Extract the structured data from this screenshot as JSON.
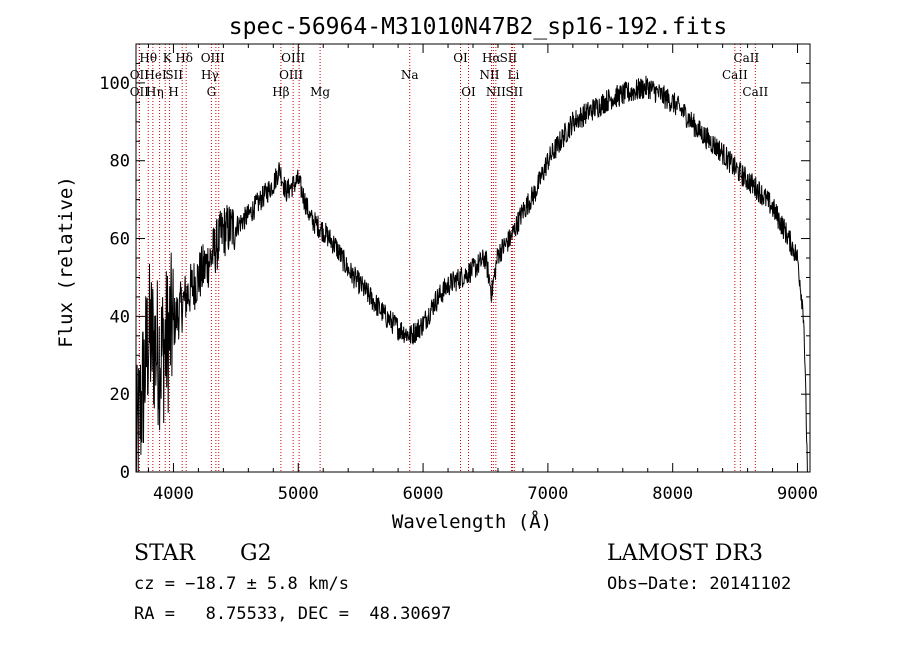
{
  "chart_data": {
    "type": "line",
    "title": "spec-56964-M31010N47B2_sp16-192.fits",
    "xlabel": "Wavelength (Å)",
    "ylabel": "Flux (relative)",
    "xlim": [
      3700,
      9100
    ],
    "ylim": [
      0,
      110
    ],
    "x_ticks": [
      4000,
      5000,
      6000,
      7000,
      8000,
      9000
    ],
    "y_ticks": [
      0,
      20,
      40,
      60,
      80,
      100
    ],
    "grid": false,
    "line_color": "#000000",
    "marker_color": "#cc0000",
    "series": [
      {
        "name": "flux",
        "x": [
          3700,
          3800,
          3900,
          4000,
          4100,
          4200,
          4300,
          4400,
          4500,
          4600,
          4700,
          4800,
          4850,
          4900,
          5000,
          5100,
          5200,
          5300,
          5400,
          5500,
          5600,
          5700,
          5800,
          5900,
          6000,
          6100,
          6200,
          6300,
          6400,
          6500,
          6550,
          6600,
          6700,
          6800,
          6900,
          7000,
          7100,
          7200,
          7300,
          7400,
          7500,
          7600,
          7700,
          7800,
          7900,
          8000,
          8100,
          8200,
          8300,
          8400,
          8500,
          8600,
          8700,
          8800,
          8900,
          9000,
          9050,
          9080
        ],
        "y": [
          5,
          35,
          30,
          38,
          45,
          50,
          55,
          62,
          63,
          66,
          70,
          74,
          78,
          72,
          75,
          65,
          62,
          58,
          52,
          48,
          44,
          40,
          37,
          35,
          38,
          44,
          48,
          50,
          52,
          55,
          46,
          56,
          60,
          67,
          72,
          80,
          85,
          90,
          92,
          94,
          96,
          97,
          98,
          99,
          97,
          95,
          92,
          88,
          85,
          82,
          78,
          75,
          72,
          68,
          62,
          55,
          40,
          0
        ]
      }
    ],
    "lines": [
      {
        "label": "Hθ",
        "x": 3798,
        "row": 1,
        "dx": 0
      },
      {
        "label": "K",
        "x": 3934,
        "row": 1,
        "dx": 2
      },
      {
        "label": "Hδ",
        "x": 4102,
        "row": 1,
        "dx": -2
      },
      {
        "label": "OIII",
        "x": 4363,
        "row": 1,
        "dx": -6
      },
      {
        "label": "OIII",
        "x": 4959,
        "row": 1,
        "dx": 0
      },
      {
        "label": "OI",
        "x": 6300,
        "row": 1,
        "dx": 0
      },
      {
        "label": "Hα",
        "x": 6563,
        "row": 1,
        "dx": -2
      },
      {
        "label": "SII",
        "x": 6716,
        "row": 1,
        "dx": -4
      },
      {
        "label": "CaII",
        "x": 8542,
        "row": 1,
        "dx": 6
      },
      {
        "label": "OII",
        "x": 3727,
        "row": 2,
        "dx": 0
      },
      {
        "label": "HeI",
        "x": 3889,
        "row": 2,
        "dx": -4
      },
      {
        "label": "SII",
        "x": 4070,
        "row": 2,
        "dx": -8
      },
      {
        "label": "Hγ",
        "x": 4340,
        "row": 2,
        "dx": -6
      },
      {
        "label": "OIII",
        "x": 5007,
        "row": 2,
        "dx": -8
      },
      {
        "label": "Na",
        "x": 5893,
        "row": 2,
        "dx": 0
      },
      {
        "label": "NII",
        "x": 6548,
        "row": 2,
        "dx": -2
      },
      {
        "label": "Li",
        "x": 6708,
        "row": 2,
        "dx": 2
      },
      {
        "label": "CaII",
        "x": 8498,
        "row": 2,
        "dx": 0
      },
      {
        "label": "OII",
        "x": 3727,
        "row": 3,
        "dx": 0
      },
      {
        "label": "Hη",
        "x": 3835,
        "row": 3,
        "dx": 2
      },
      {
        "label": "H",
        "x": 3969,
        "row": 3,
        "dx": 4
      },
      {
        "label": "G",
        "x": 4304,
        "row": 3,
        "dx": 0
      },
      {
        "label": "Hβ",
        "x": 4861,
        "row": 3,
        "dx": 0
      },
      {
        "label": "Mg",
        "x": 5175,
        "row": 3,
        "dx": 0
      },
      {
        "label": "OI",
        "x": 6364,
        "row": 3,
        "dx": 0
      },
      {
        "label": "NII",
        "x": 6583,
        "row": 3,
        "dx": 0
      },
      {
        "label": "SII",
        "x": 6731,
        "row": 3,
        "dx": 0
      },
      {
        "label": "CaII",
        "x": 8662,
        "row": 3,
        "dx": 0
      }
    ]
  },
  "info": {
    "class_label": "STAR",
    "subclass_label": "G2",
    "cz": "cz = −18.7 ± 5.8 km/s",
    "coords": "RA =   8.75533, DEC =  48.30697",
    "survey": "LAMOST DR3",
    "obs_date": "Obs−Date: 20141102"
  }
}
